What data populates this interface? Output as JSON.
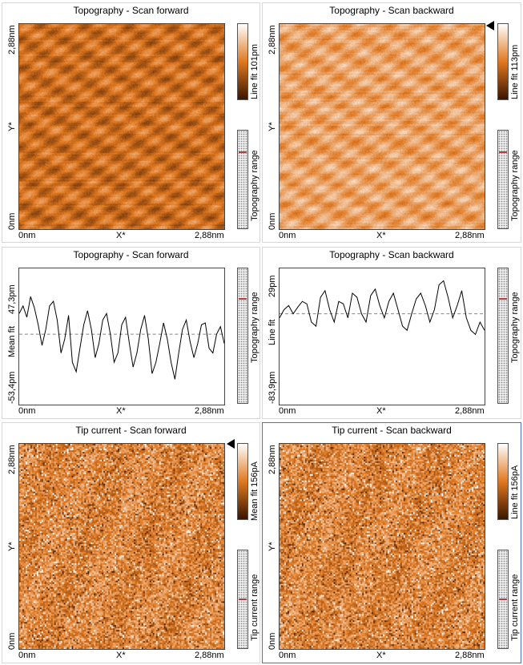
{
  "panels": {
    "p1": {
      "title": "Topography - Scan forward",
      "y_top": "2,88nm",
      "y_mid": "Y*",
      "y_bot": "0nm",
      "x_left": "0nm",
      "x_mid": "X*",
      "x_right": "2,88nm",
      "cbar_label": "Line fit 101pm",
      "range_label": "Topography range"
    },
    "p2": {
      "title": "Topography - Scan backward",
      "y_top": "2,88nm",
      "y_mid": "Y*",
      "y_bot": "0nm",
      "x_left": "0nm",
      "x_mid": "X*",
      "x_right": "2,88nm",
      "cbar_label": "Line fit 113pm",
      "range_label": "Topography range"
    },
    "p3": {
      "title": "Topography - Scan forward",
      "y_top": "47,3pm",
      "y_mid": "Mean fit",
      "y_bot": "-53,4pm",
      "x_left": "0nm",
      "x_mid": "X*",
      "x_right": "2,88nm",
      "range_label": "Topography range"
    },
    "p4": {
      "title": "Topography - Scan backward",
      "y_top": "29pm",
      "y_mid": "Line fit",
      "y_bot": "-83,9pm",
      "x_left": "0nm",
      "x_mid": "X*",
      "x_right": "2,88nm",
      "range_label": "Topography range"
    },
    "p5": {
      "title": "Tip current - Scan forward",
      "y_top": "2,88nm",
      "y_mid": "Y*",
      "y_bot": "0nm",
      "x_left": "0nm",
      "x_mid": "X*",
      "x_right": "2,88nm",
      "cbar_label": "Mean fit 156pA",
      "range_label": "Tip current range"
    },
    "p6": {
      "title": "Tip current - Scan backward",
      "y_top": "2,88nm",
      "y_mid": "Y*",
      "y_bot": "0nm",
      "x_left": "0nm",
      "x_mid": "X*",
      "x_right": "2,88nm",
      "cbar_label": "Line fit 156pA",
      "range_label": "Tip current range"
    }
  },
  "colors": {
    "colormap_dark": "#3a1500",
    "colormap_mid": "#e07820",
    "colormap_light": "#ffffff",
    "selected_border": "#4a73b8",
    "range_marker": "#b04040"
  },
  "line_profiles": {
    "forward": [
      22,
      30,
      18,
      40,
      28,
      10,
      -12,
      5,
      30,
      35,
      15,
      -20,
      -5,
      20,
      -30,
      -40,
      -15,
      10,
      25,
      5,
      -25,
      -10,
      15,
      22,
      0,
      -30,
      -20,
      10,
      18,
      -10,
      -35,
      -20,
      5,
      20,
      -5,
      -42,
      -30,
      -10,
      12,
      -5,
      -30,
      -48,
      -20,
      5,
      15,
      -8,
      -25,
      -10,
      10,
      12,
      -15,
      -20,
      0,
      8,
      -10
    ],
    "backward": [
      -5,
      5,
      10,
      0,
      8,
      15,
      12,
      -10,
      -15,
      20,
      28,
      5,
      -10,
      15,
      12,
      -5,
      25,
      20,
      0,
      -10,
      22,
      30,
      10,
      -5,
      15,
      25,
      5,
      -15,
      -20,
      0,
      18,
      25,
      10,
      -10,
      5,
      35,
      40,
      20,
      -5,
      10,
      28,
      -5,
      -20,
      -25,
      -10,
      -20
    ]
  }
}
